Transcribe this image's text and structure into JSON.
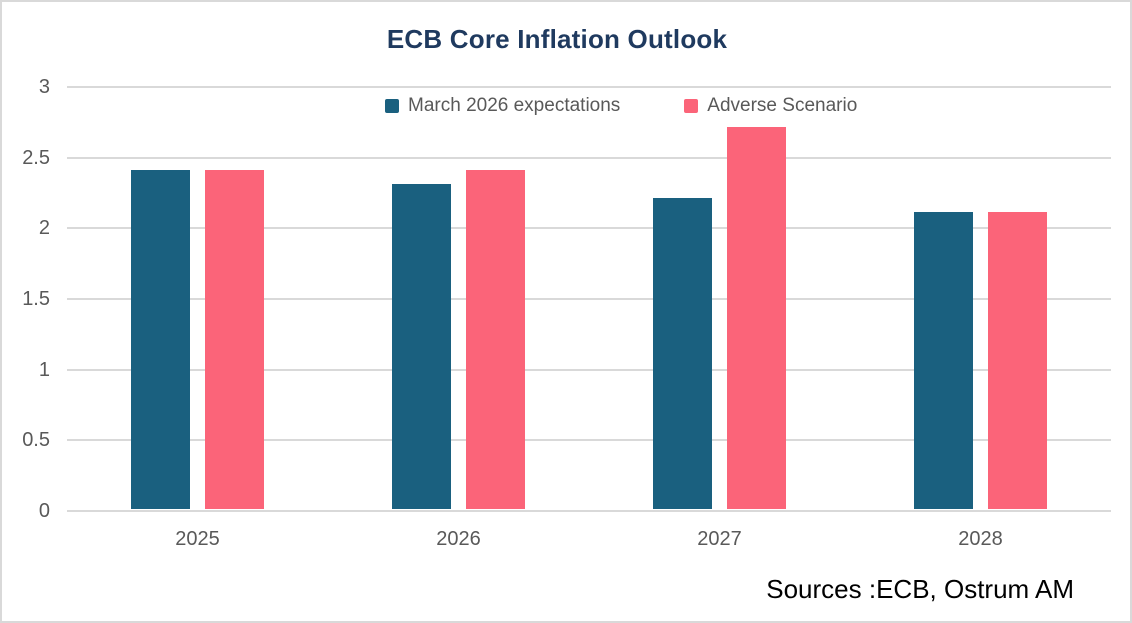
{
  "chart_data": {
    "type": "bar",
    "title": "ECB Core Inflation Outlook",
    "categories": [
      "2025",
      "2026",
      "2027",
      "2028"
    ],
    "series": [
      {
        "name": "March 2026 expectations",
        "color": "#1a607f",
        "values": [
          2.4,
          2.3,
          2.2,
          2.1
        ]
      },
      {
        "name": "Adverse Scenario",
        "color": "#fb6479",
        "values": [
          2.4,
          2.4,
          2.7,
          2.1
        ]
      }
    ],
    "ylim": [
      0,
      3
    ],
    "yticks": [
      3,
      2.5,
      2,
      1.5,
      1,
      0.5,
      0
    ],
    "ytick_labels": [
      "3",
      "2.5",
      "2",
      "1.5",
      "1",
      "0.5",
      "0"
    ],
    "grid": true,
    "legend_position": "top-center",
    "source_note": "Sources :ECB, Ostrum AM"
  },
  "colors": {
    "title_text": "#1f3a5f",
    "axis_text": "#595959",
    "gridline": "#d9d9d9",
    "border": "#d9d9d9",
    "background": "#ffffff",
    "source_text": "#000000"
  }
}
